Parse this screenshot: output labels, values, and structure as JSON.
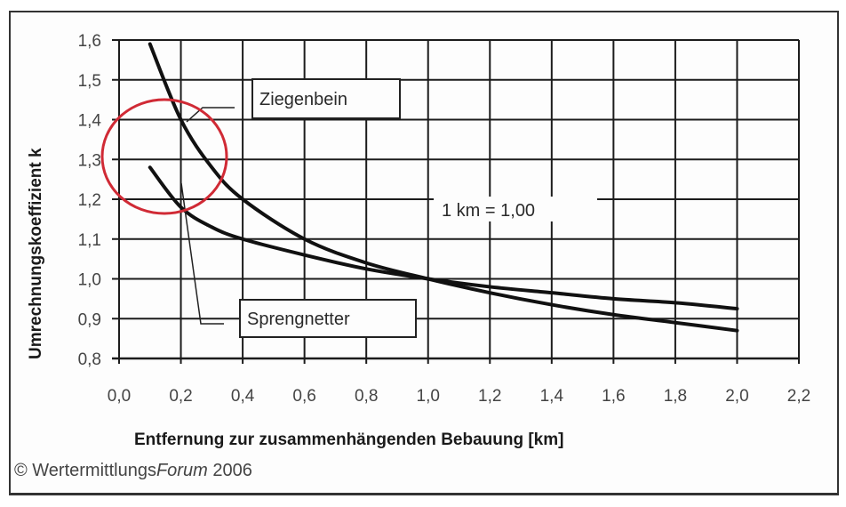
{
  "chart_data": {
    "type": "line",
    "title": "",
    "xlabel": "Entfernung zur zusammenhängenden Bebauung [km]",
    "ylabel": "Umrechnungskoeffizient k",
    "xlim": [
      0.0,
      2.2
    ],
    "ylim": [
      0.8,
      1.6
    ],
    "grid": true,
    "legend_position": "inline labels",
    "x_ticks": [
      "0,0",
      "0,2",
      "0,4",
      "0,6",
      "0,8",
      "1,0",
      "1,2",
      "1,4",
      "1,6",
      "1,8",
      "2,0",
      "2,2"
    ],
    "y_ticks": [
      "0,8",
      "0,9",
      "1,0",
      "1,1",
      "1,2",
      "1,3",
      "1,4",
      "1,5",
      "1,6"
    ],
    "x": [
      0.1,
      0.2,
      0.3,
      0.4,
      0.6,
      0.8,
      1.0,
      1.2,
      1.4,
      1.6,
      1.8,
      2.0
    ],
    "series": [
      {
        "name": "Ziegenbein",
        "values": [
          1.59,
          1.4,
          1.28,
          1.2,
          1.1,
          1.04,
          1.0,
          0.965,
          0.935,
          0.91,
          0.89,
          0.87
        ],
        "color": "#111111"
      },
      {
        "name": "Sprengnetter",
        "values": [
          1.28,
          1.18,
          1.13,
          1.1,
          1.06,
          1.025,
          1.0,
          0.98,
          0.965,
          0.95,
          0.94,
          0.925
        ],
        "color": "#111111"
      }
    ],
    "annotations": [
      {
        "text": "1 km = 1,00",
        "x": 1.0,
        "y": 1.25
      },
      {
        "type": "circle",
        "color": "#d02a35",
        "center_x": 0.15,
        "center_y": 1.31,
        "note": "highlighted region"
      }
    ]
  },
  "labels": {
    "ziegenbein": "Ziegenbein",
    "sprengnetter": "Sprengnetter",
    "reference_note": "1 km = 1,00"
  },
  "copyright": {
    "prefix": "© Wertermittlungs",
    "italic": "Forum",
    "suffix": " 2006"
  },
  "colors": {
    "grid": "#1c1c1c",
    "curve": "#111111",
    "highlight_circle": "#d02a35"
  }
}
